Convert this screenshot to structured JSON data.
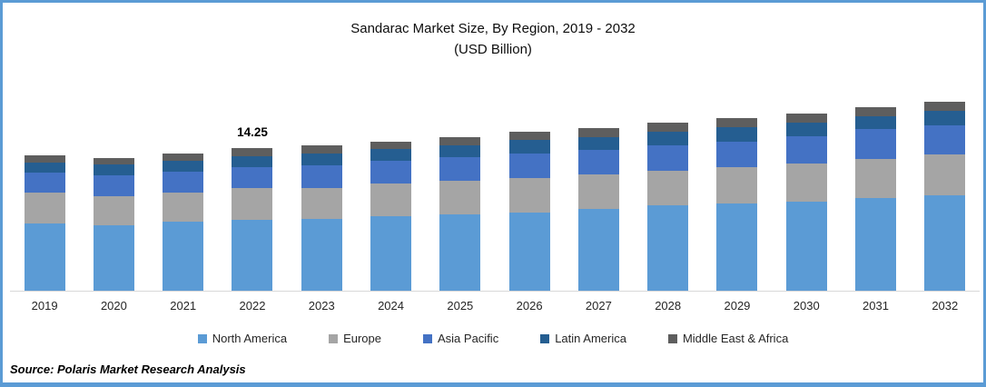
{
  "source_note": "Source: Polaris Market Research Analysis",
  "frame": {
    "border_color": "#5B9BD5",
    "background_color": "#FFFFFF",
    "axis_line_color": "#D9D9D9"
  },
  "chart_data": {
    "type": "bar",
    "stacked": true,
    "title": "Sandarac Market Size, By Region, 2019 - 2032",
    "subtitle": "(USD Billion)",
    "ylabel": "USD Billion",
    "xlabel": "",
    "grid": false,
    "legend_position": "bottom",
    "categories": [
      "2019",
      "2020",
      "2021",
      "2022",
      "2023",
      "2024",
      "2025",
      "2026",
      "2027",
      "2028",
      "2029",
      "2030",
      "2031",
      "2032"
    ],
    "series": [
      {
        "name": "North America",
        "color": "#5B9BD5",
        "values": [
          6.74,
          6.58,
          6.88,
          7.1,
          7.22,
          7.44,
          7.65,
          7.83,
          8.19,
          8.59,
          8.74,
          8.89,
          9.26,
          9.56
        ]
      },
      {
        "name": "Europe",
        "color": "#A5A5A5",
        "values": [
          3.05,
          2.92,
          2.94,
          3.15,
          3.1,
          3.32,
          3.34,
          3.46,
          3.49,
          3.41,
          3.61,
          3.85,
          3.94,
          4.1
        ]
      },
      {
        "name": "Asia Pacific",
        "color": "#4472C4",
        "values": [
          2.02,
          2.08,
          2.1,
          2.08,
          2.22,
          2.22,
          2.42,
          2.46,
          2.43,
          2.58,
          2.6,
          2.73,
          2.98,
          2.89
        ]
      },
      {
        "name": "Latin America",
        "color": "#255E91",
        "values": [
          1.06,
          1.02,
          1.12,
          1.12,
          1.22,
          1.21,
          1.16,
          1.37,
          1.26,
          1.37,
          1.43,
          1.37,
          1.28,
          1.46
        ]
      },
      {
        "name": "Middle East & Africa",
        "color": "#5E5E5E",
        "values": [
          0.68,
          0.7,
          0.66,
          0.8,
          0.84,
          0.76,
          0.83,
          0.78,
          0.88,
          0.85,
          0.92,
          0.91,
          0.89,
          0.94
        ]
      }
    ],
    "totals": [
      13.55,
      13.3,
      13.7,
      14.25,
      14.6,
      14.95,
      15.4,
      15.9,
      16.25,
      16.8,
      17.3,
      17.75,
      18.35,
      18.95
    ],
    "data_labels": [
      {
        "category": "2022",
        "label": "14.25"
      }
    ]
  }
}
